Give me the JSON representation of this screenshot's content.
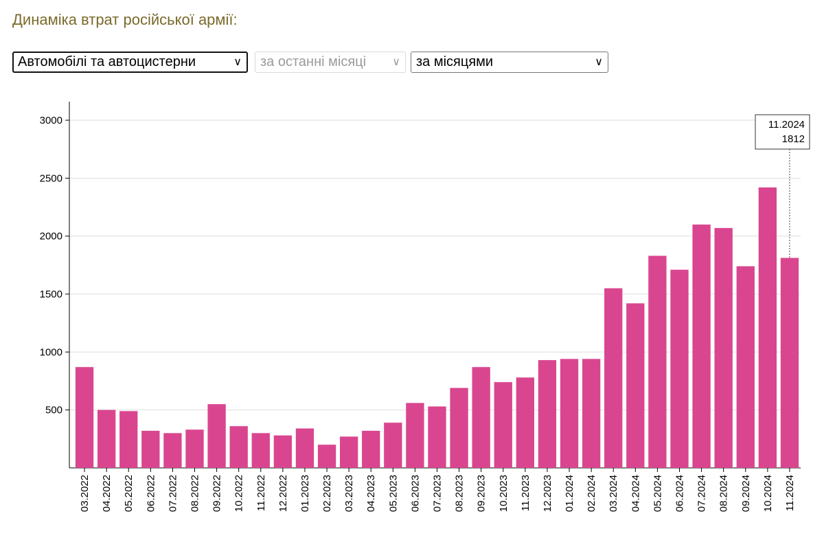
{
  "page": {
    "title": "Динаміка втрат російської армії:"
  },
  "controls": {
    "category_select": "Автомобілі та автоцистерни",
    "period_select": "за останні місяці",
    "grouping_select": "за місяцями"
  },
  "tooltip": {
    "label": "11.2024",
    "value": "1812"
  },
  "colors": {
    "bar": "#d9468f",
    "title": "#7a6a2a",
    "grid": "#dedede"
  },
  "chart_data": {
    "type": "bar",
    "categories": [
      "03.2022",
      "04.2022",
      "05.2022",
      "06.2022",
      "07.2022",
      "08.2022",
      "09.2022",
      "10.2022",
      "11.2022",
      "12.2022",
      "01.2023",
      "02.2023",
      "03.2023",
      "04.2023",
      "05.2023",
      "06.2023",
      "07.2023",
      "08.2023",
      "09.2023",
      "10.2023",
      "11.2023",
      "12.2023",
      "01.2024",
      "02.2024",
      "03.2024",
      "04.2024",
      "05.2024",
      "06.2024",
      "07.2024",
      "08.2024",
      "09.2024",
      "10.2024",
      "11.2024"
    ],
    "values": [
      870,
      500,
      490,
      320,
      300,
      330,
      550,
      360,
      300,
      280,
      340,
      200,
      270,
      320,
      390,
      560,
      530,
      690,
      870,
      740,
      780,
      930,
      940,
      940,
      1550,
      1420,
      1830,
      1710,
      2100,
      2070,
      1740,
      2420,
      1812
    ],
    "yticks": [
      500,
      1000,
      1500,
      2000,
      2500,
      3000
    ],
    "ylim": [
      0,
      3150
    ],
    "grid": true,
    "title": "",
    "xlabel": "",
    "ylabel": ""
  }
}
